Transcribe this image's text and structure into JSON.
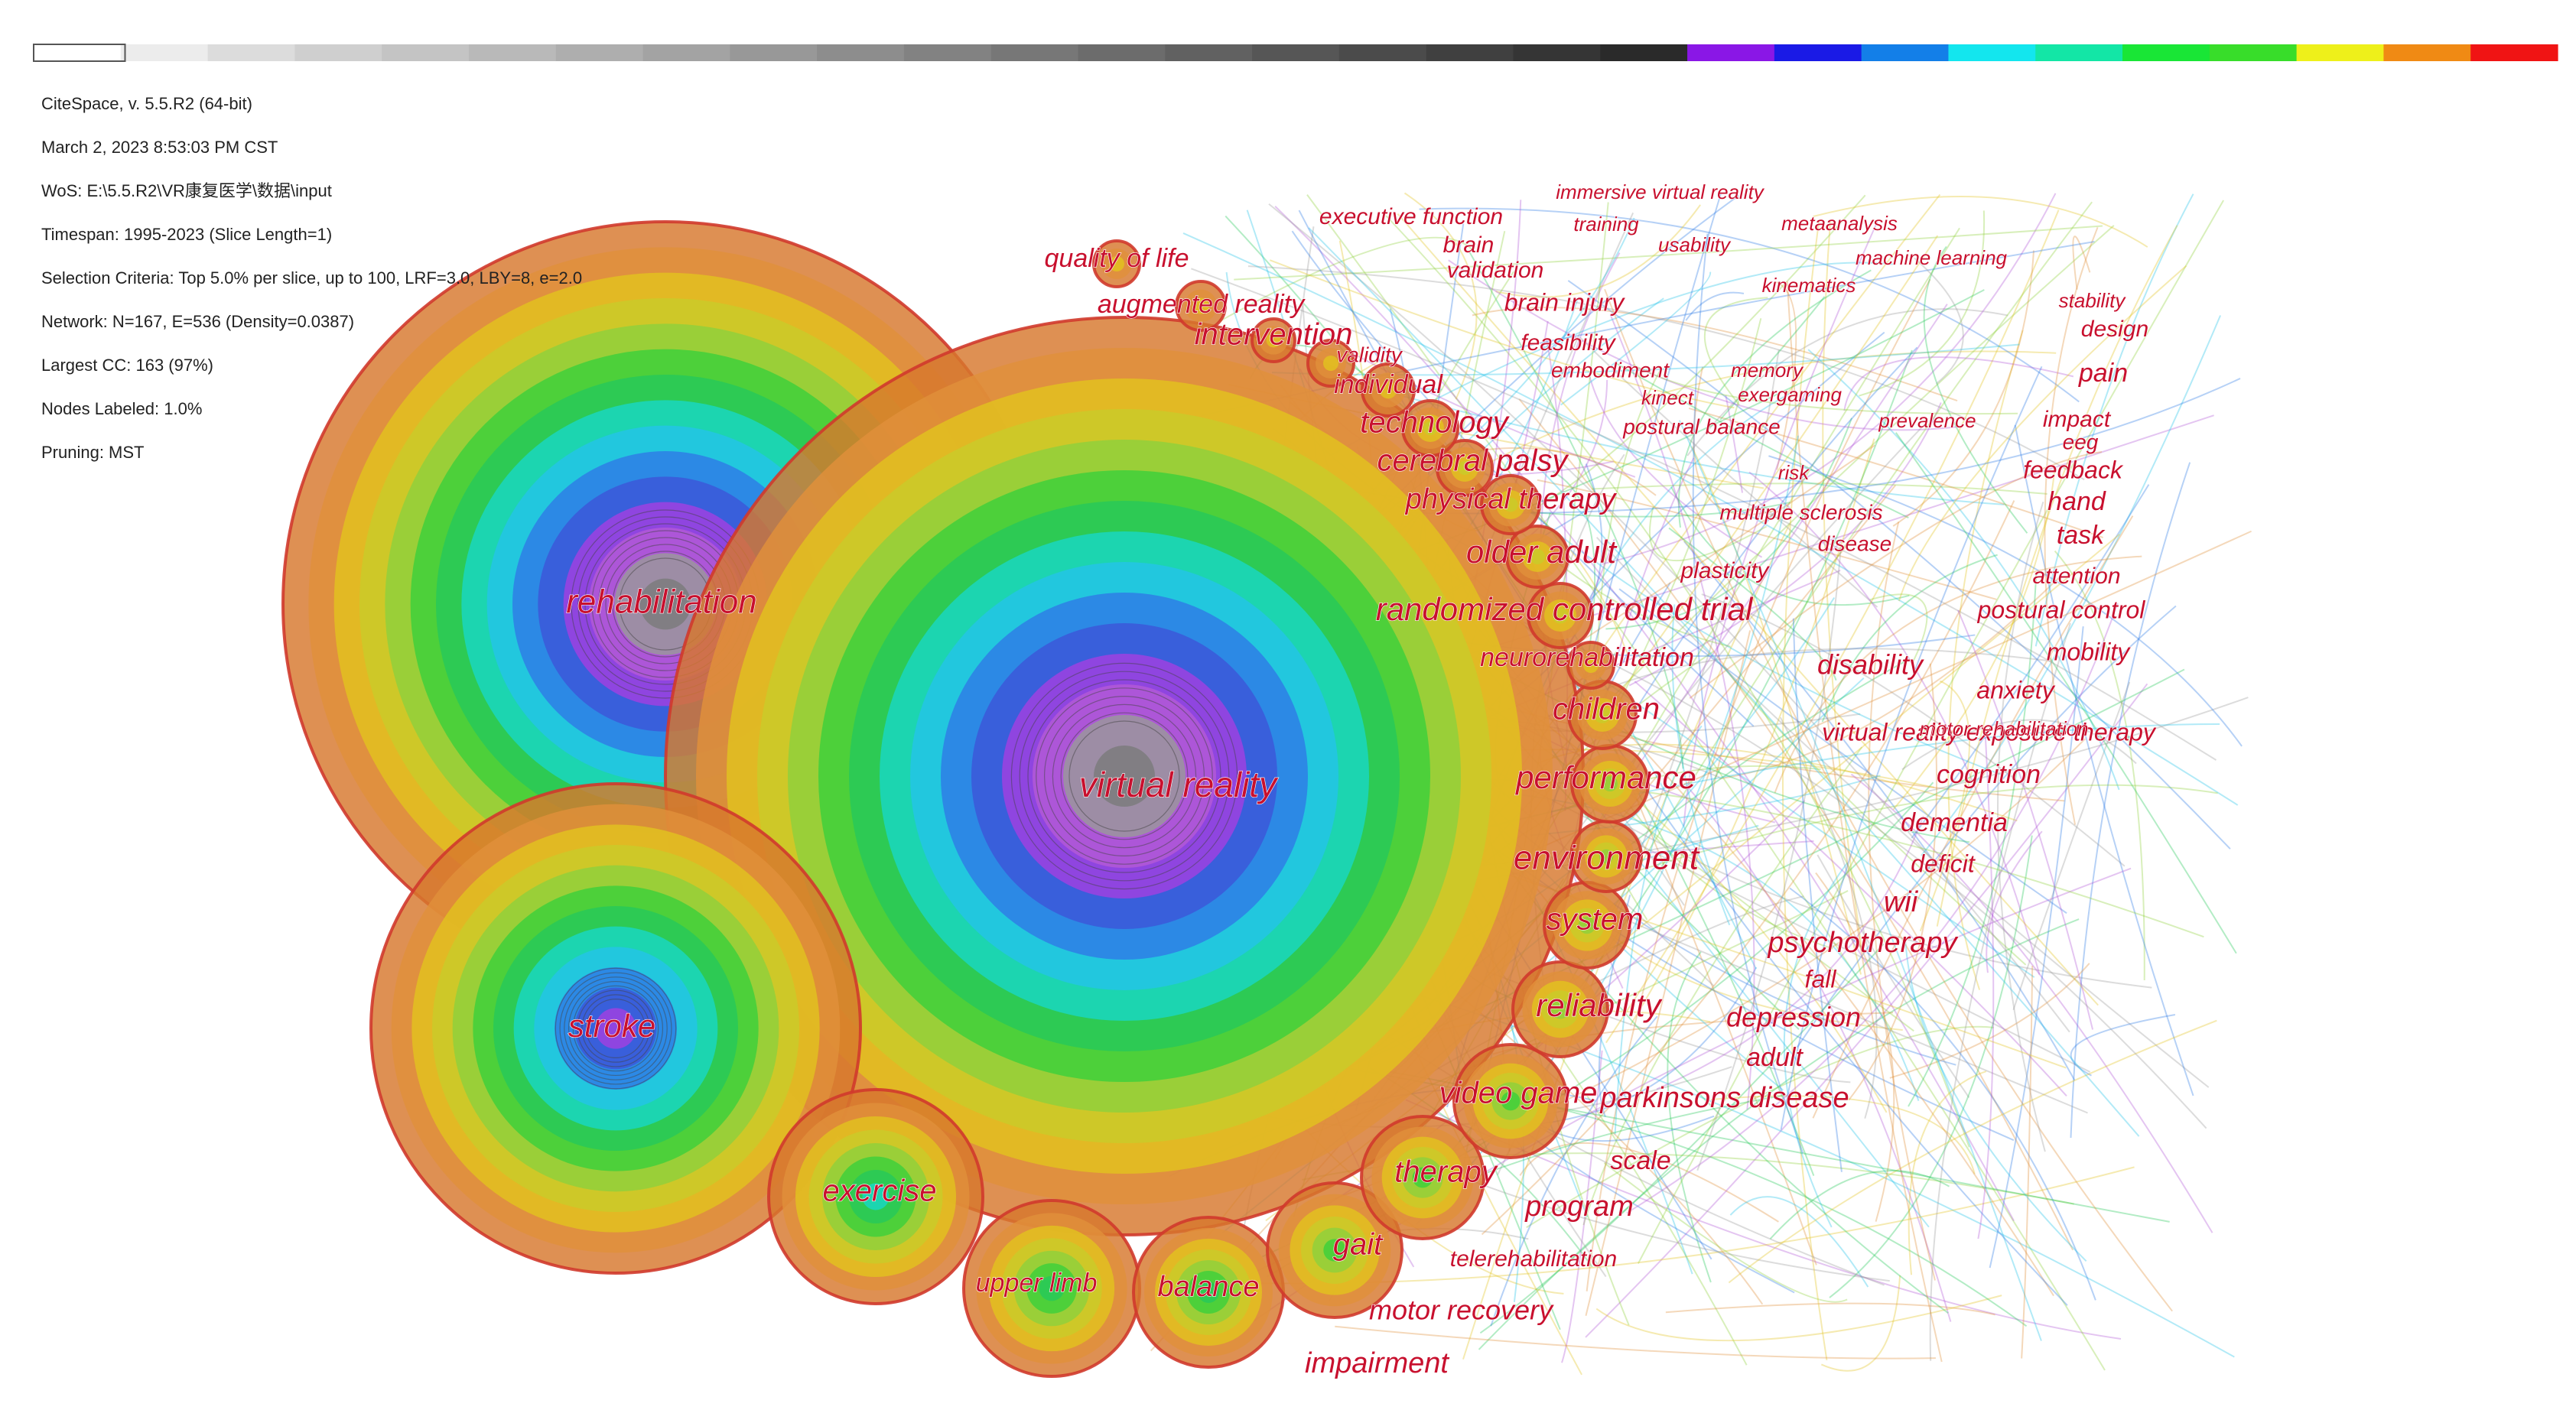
{
  "colors": {
    "accent_text": "#c8102e",
    "ring_sequence": [
      "#7b7b7b",
      "#9a9a9a",
      "#b35ad6",
      "#a23fe0",
      "#3c55d8",
      "#2e7be6",
      "#23c3e8",
      "#18d7c4",
      "#26c85a",
      "#3ccf3a",
      "#8fd13c",
      "#c9cc2a",
      "#e2c21f",
      "#e0903a",
      "#d7782d"
    ],
    "timeline_gray": [
      "#ffffff",
      "#ececec",
      "#dcdcdc",
      "#cfcfcf",
      "#c4c4c4",
      "#b9b9b9",
      "#aeaeae",
      "#a3a3a3",
      "#989898",
      "#8d8d8d",
      "#828282",
      "#777777",
      "#6c6c6c",
      "#616161",
      "#565656",
      "#4b4b4b",
      "#404040",
      "#353535",
      "#2a2a2a"
    ],
    "timeline_color": [
      "#8a17e6",
      "#1a1ae6",
      "#137fe8",
      "#13e6ee",
      "#13e6a6",
      "#19e636",
      "#38dd2a",
      "#eef01a",
      "#f08a14",
      "#f01414"
    ]
  },
  "meta": {
    "version": "CiteSpace, v. 5.5.R2 (64-bit)",
    "date": "March 2, 2023 8:53:03 PM CST",
    "wos": "WoS: E:\\5.5.R2\\VR康复医学\\数据\\input",
    "timespan": "Timespan: 1995-2023 (Slice Length=1)",
    "selection": "Selection Criteria: Top 5.0% per slice, up to 100, LRF=3.0, LBY=8, e=2.0",
    "network": "Network: N=167, E=536 (Density=0.0387)",
    "largest_cc": "Largest CC: 163 (97%)",
    "nodes_labeled": "Nodes Labeled: 1.0%",
    "pruning": "Pruning: MST"
  },
  "nodes": [
    {
      "label": "rehabilitation",
      "size": "huge",
      "rings": 15
    },
    {
      "label": "virtual reality",
      "size": "huge",
      "rings": 15
    },
    {
      "label": "stroke",
      "size": "large",
      "rings": 12
    },
    {
      "label": "exercise",
      "size": "medium",
      "rings": 8
    },
    {
      "label": "upper limb",
      "size": "medium",
      "rings": 7
    },
    {
      "label": "balance",
      "size": "medium",
      "rings": 7
    },
    {
      "label": "gait",
      "size": "medium",
      "rings": 6
    },
    {
      "label": "therapy",
      "size": "medium",
      "rings": 6
    },
    {
      "label": "video game",
      "size": "medium",
      "rings": 6
    },
    {
      "label": "reliability",
      "size": "small",
      "rings": 5
    },
    {
      "label": "system",
      "size": "small",
      "rings": 5
    },
    {
      "label": "environment",
      "size": "small",
      "rings": 5
    },
    {
      "label": "performance",
      "size": "small",
      "rings": 5
    },
    {
      "label": "children",
      "size": "small",
      "rings": 4
    },
    {
      "label": "neurorehabilitation",
      "size": "small",
      "rings": 3
    },
    {
      "label": "randomized controlled trial",
      "size": "small",
      "rings": 4
    },
    {
      "label": "older adult",
      "size": "small",
      "rings": 4
    },
    {
      "label": "physical therapy",
      "size": "small",
      "rings": 4
    },
    {
      "label": "cerebral palsy",
      "size": "small",
      "rings": 4
    },
    {
      "label": "technology",
      "size": "small",
      "rings": 4
    },
    {
      "label": "individual",
      "size": "small",
      "rings": 3
    },
    {
      "label": "validity",
      "size": "small",
      "rings": 3
    },
    {
      "label": "intervention",
      "size": "small",
      "rings": 3
    },
    {
      "label": "augmented reality",
      "size": "small",
      "rings": 3
    },
    {
      "label": "quality of life",
      "size": "small",
      "rings": 3
    }
  ],
  "labels": {
    "big": [
      "rehabilitation",
      "virtual reality",
      "stroke",
      "exercise",
      "upper limb",
      "balance",
      "gait",
      "therapy",
      "video game",
      "reliability",
      "system",
      "environment",
      "performance",
      "children",
      "randomized controlled trial",
      "older adult",
      "physical therapy",
      "cerebral palsy",
      "technology",
      "individual",
      "intervention",
      "augmented reality",
      "quality of life"
    ],
    "outer": [
      "impairment",
      "motor recovery",
      "telerehabilitation",
      "program",
      "scale",
      "parkinsons disease",
      "adult",
      "depression",
      "fall",
      "psychotherapy",
      "wii",
      "deficit",
      "dementia",
      "cognition",
      "virtual reality exposure therapy",
      "motor rehabilitation",
      "anxiety",
      "mobility",
      "disability",
      "neurorehabilitation",
      "postural control",
      "attention",
      "plasticity",
      "disease",
      "multiple sclerosis",
      "risk",
      "task",
      "hand",
      "feedback",
      "eeg",
      "impact",
      "prevalence",
      "postural balance",
      "kinect",
      "exergaming",
      "memory",
      "embodiment",
      "feasibility",
      "brain injury",
      "validation",
      "brain",
      "executive function",
      "training",
      "usability",
      "kinematics",
      "immersive virtual reality",
      "metaanalysis",
      "machine learning",
      "stability",
      "design",
      "pain",
      "validity"
    ]
  }
}
